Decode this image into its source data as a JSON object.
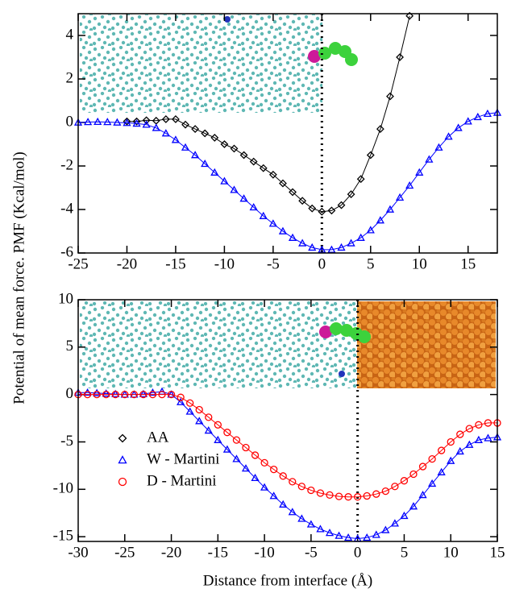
{
  "chart_data": [
    {
      "type": "line",
      "ylabel": "Potential of mean force. PMF (Kcal/mol)",
      "xlim": [
        -25,
        18
      ],
      "xticks": [
        -25,
        -20,
        -15,
        -10,
        -5,
        0,
        5,
        10,
        15
      ],
      "ylim": [
        -6,
        5
      ],
      "yticks": [
        -6,
        -4,
        -2,
        0,
        2,
        4
      ],
      "vline": 0,
      "series": [
        {
          "name": "AA",
          "color": "#000000",
          "marker": "diamond",
          "x": [
            -20,
            -19,
            -18,
            -17,
            -16,
            -15,
            -14,
            -13,
            -12,
            -11,
            -10,
            -9,
            -8,
            -7,
            -6,
            -5,
            -4,
            -3,
            -2,
            -1,
            0,
            1,
            2,
            3,
            4,
            5,
            6,
            7,
            8,
            9
          ],
          "values": [
            0.05,
            0.05,
            0.1,
            0.08,
            0.15,
            0.15,
            -0.1,
            -0.3,
            -0.5,
            -0.7,
            -1.0,
            -1.2,
            -1.5,
            -1.8,
            -2.1,
            -2.4,
            -2.8,
            -3.2,
            -3.6,
            -3.95,
            -4.1,
            -4.05,
            -3.8,
            -3.3,
            -2.6,
            -1.5,
            -0.3,
            1.2,
            3.0,
            4.9
          ]
        },
        {
          "name": "W - Martini",
          "color": "#0000ff",
          "marker": "triangle",
          "x": [
            -25,
            -24,
            -23,
            -22,
            -21,
            -20,
            -19,
            -18,
            -17,
            -16,
            -15,
            -14,
            -13,
            -12,
            -11,
            -10,
            -9,
            -8,
            -7,
            -6,
            -5,
            -4,
            -3,
            -2,
            -1,
            0,
            1,
            2,
            3,
            4,
            5,
            6,
            7,
            8,
            9,
            10,
            11,
            12,
            13,
            14,
            15,
            16,
            17,
            18
          ],
          "values": [
            0,
            0.02,
            0.03,
            0.02,
            0,
            -0.02,
            -0.05,
            -0.1,
            -0.25,
            -0.5,
            -0.8,
            -1.15,
            -1.5,
            -1.9,
            -2.3,
            -2.7,
            -3.1,
            -3.5,
            -3.9,
            -4.3,
            -4.65,
            -5.0,
            -5.3,
            -5.55,
            -5.75,
            -5.85,
            -5.85,
            -5.75,
            -5.55,
            -5.3,
            -4.95,
            -4.5,
            -4.0,
            -3.45,
            -2.9,
            -2.3,
            -1.7,
            -1.15,
            -0.65,
            -0.25,
            0.05,
            0.25,
            0.4,
            0.45
          ]
        }
      ]
    },
    {
      "type": "line",
      "xlabel": "Distance from interface (Å)",
      "xlim": [
        -30,
        15
      ],
      "xticks": [
        -30,
        -25,
        -20,
        -15,
        -10,
        -5,
        0,
        5,
        10,
        15
      ],
      "ylim": [
        -15.5,
        10
      ],
      "yticks": [
        -15,
        -10,
        -5,
        0,
        5,
        10
      ],
      "vline": 0,
      "legend": "lower left",
      "series": [
        {
          "name": "W - Martini",
          "color": "#0000ff",
          "marker": "triangle",
          "x": [
            -30,
            -29,
            -28,
            -27,
            -26,
            -25,
            -24,
            -23,
            -22,
            -21,
            -20,
            -19,
            -18,
            -17,
            -16,
            -15,
            -14,
            -13,
            -12,
            -11,
            -10,
            -9,
            -8,
            -7,
            -6,
            -5,
            -4,
            -3,
            -2,
            -1,
            0,
            1,
            2,
            3,
            4,
            5,
            6,
            7,
            8,
            9,
            10,
            11,
            12,
            13,
            14,
            15
          ],
          "values": [
            0.2,
            0.2,
            0.15,
            0.1,
            0.05,
            0,
            0,
            0.05,
            0.2,
            0.3,
            0,
            -0.8,
            -1.8,
            -2.8,
            -3.8,
            -4.8,
            -5.8,
            -6.8,
            -7.8,
            -8.8,
            -9.8,
            -10.7,
            -11.6,
            -12.4,
            -13.1,
            -13.7,
            -14.2,
            -14.6,
            -14.9,
            -15.1,
            -15.2,
            -15.1,
            -14.8,
            -14.3,
            -13.6,
            -12.8,
            -11.8,
            -10.6,
            -9.4,
            -8.2,
            -7.0,
            -6.0,
            -5.3,
            -4.8,
            -4.6,
            -4.5
          ]
        },
        {
          "name": "D - Martini",
          "color": "#ff0000",
          "marker": "circle",
          "x": [
            -30,
            -29,
            -28,
            -27,
            -26,
            -25,
            -24,
            -23,
            -22,
            -21,
            -20,
            -19,
            -18,
            -17,
            -16,
            -15,
            -14,
            -13,
            -12,
            -11,
            -10,
            -9,
            -8,
            -7,
            -6,
            -5,
            -4,
            -3,
            -2,
            -1,
            0,
            1,
            2,
            3,
            4,
            5,
            6,
            7,
            8,
            9,
            10,
            11,
            12,
            13,
            14,
            15
          ],
          "values": [
            0,
            0,
            0,
            0,
            0,
            0,
            0,
            0,
            0,
            0,
            0,
            -0.3,
            -0.9,
            -1.6,
            -2.4,
            -3.2,
            -4.0,
            -4.8,
            -5.6,
            -6.4,
            -7.2,
            -7.9,
            -8.6,
            -9.2,
            -9.7,
            -10.1,
            -10.4,
            -10.6,
            -10.75,
            -10.8,
            -10.8,
            -10.7,
            -10.5,
            -10.2,
            -9.7,
            -9.1,
            -8.4,
            -7.6,
            -6.8,
            -5.9,
            -5.0,
            -4.2,
            -3.6,
            -3.2,
            -3.0,
            -3.0
          ]
        }
      ]
    }
  ]
}
